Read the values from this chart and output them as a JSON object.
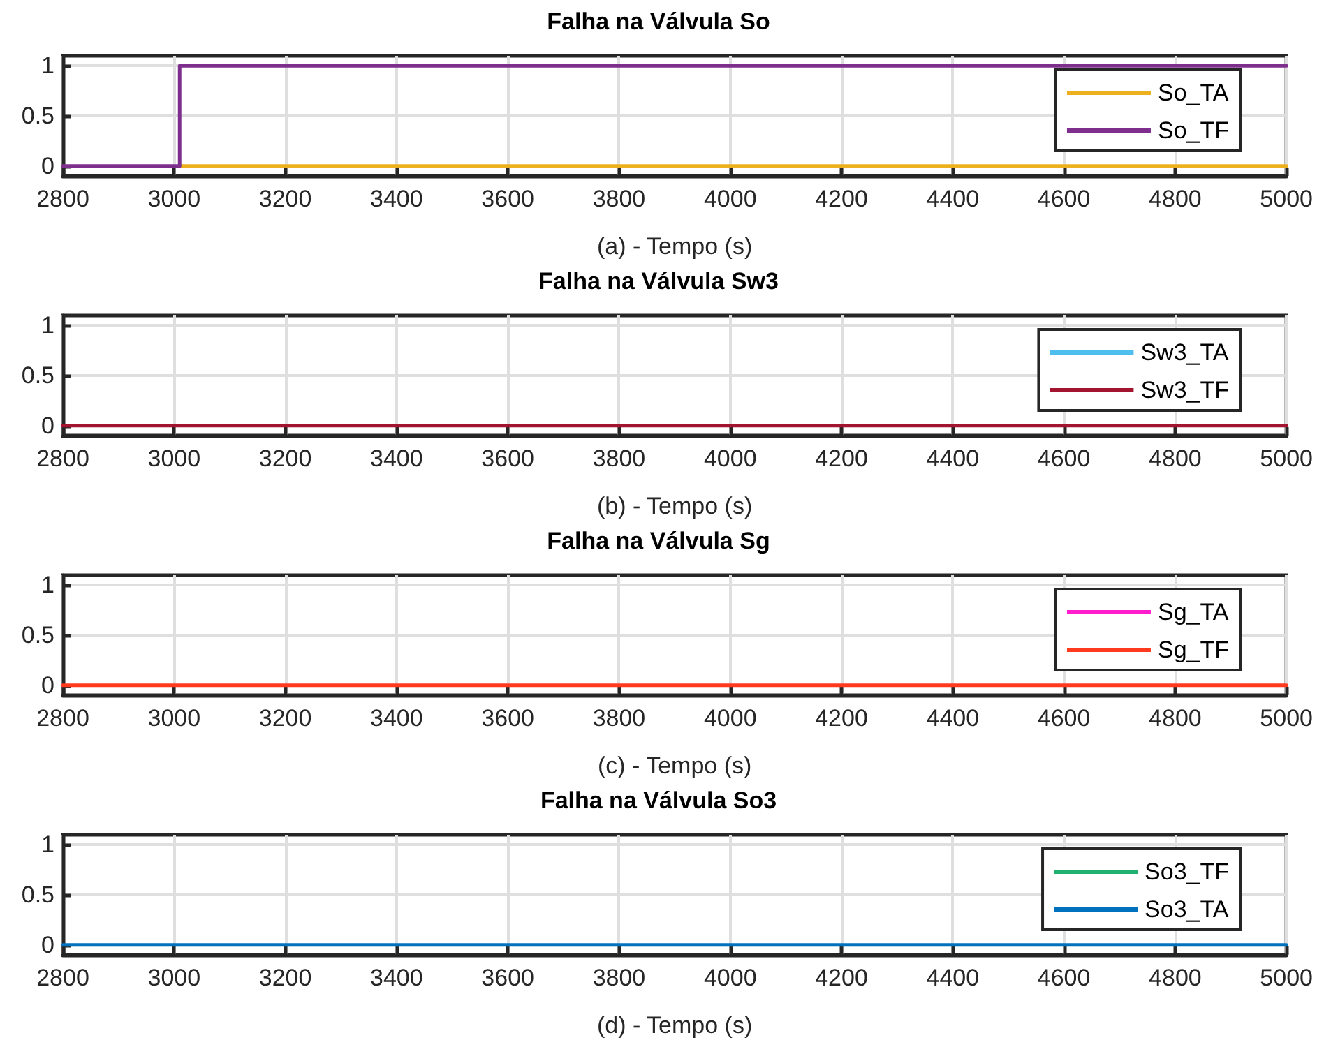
{
  "chart_data": [
    {
      "type": "line",
      "title": "Falha na Válvula So",
      "xlabel": "(a) - Tempo (s)",
      "xlim": [
        2800,
        5000
      ],
      "xticks": [
        2800,
        3000,
        3200,
        3400,
        3600,
        3800,
        4000,
        4200,
        4400,
        4600,
        4800,
        5000
      ],
      "ylim": [
        -0.1,
        1.1
      ],
      "yticks": [
        0,
        0.5,
        1
      ],
      "grid": true,
      "legend": "top right",
      "marker": "none",
      "line_style": "solid",
      "series": [
        {
          "name": "So_TA",
          "color": "#edb120",
          "x": [
            3010,
            5000
          ],
          "values": [
            0,
            0
          ]
        },
        {
          "name": "So_TF",
          "color": "#7e2f8e",
          "x": [
            2800,
            3010,
            3010,
            5000
          ],
          "values": [
            0,
            0,
            1,
            1
          ]
        }
      ]
    },
    {
      "type": "line",
      "title": "Falha na Válvula Sw3",
      "xlabel": "(b) - Tempo (s)",
      "xlim": [
        2800,
        5000
      ],
      "xticks": [
        2800,
        3000,
        3200,
        3400,
        3600,
        3800,
        4000,
        4200,
        4400,
        4600,
        4800,
        5000
      ],
      "ylim": [
        -0.1,
        1.1
      ],
      "yticks": [
        0,
        0.5,
        1
      ],
      "grid": true,
      "legend": "top right",
      "marker": "none",
      "line_style": "solid",
      "series": [
        {
          "name": "Sw3_TA",
          "color": "#4dbeee"
        },
        {
          "name": "Sw3_TF",
          "color": "#a2142f",
          "x": [
            2800,
            5000
          ],
          "values": [
            0,
            0
          ]
        }
      ]
    },
    {
      "type": "line",
      "title": "Falha na Válvula Sg",
      "xlabel": "(c) - Tempo (s)",
      "xlim": [
        2800,
        5000
      ],
      "xticks": [
        2800,
        3000,
        3200,
        3400,
        3600,
        3800,
        4000,
        4200,
        4400,
        4600,
        4800,
        5000
      ],
      "ylim": [
        -0.1,
        1.1
      ],
      "yticks": [
        0,
        0.5,
        1
      ],
      "grid": true,
      "legend": "top right",
      "marker": "none",
      "line_style": "solid",
      "series": [
        {
          "name": "Sg_TA",
          "color": "#ff1dce"
        },
        {
          "name": "Sg_TF",
          "color": "#ff3a1e",
          "x": [
            2800,
            5000
          ],
          "values": [
            0,
            0
          ]
        }
      ]
    },
    {
      "type": "line",
      "title": "Falha na Válvula So3",
      "xlabel": "(d) - Tempo (s)",
      "xlim": [
        2800,
        5000
      ],
      "xticks": [
        2800,
        3000,
        3200,
        3400,
        3600,
        3800,
        4000,
        4200,
        4400,
        4600,
        4800,
        5000
      ],
      "ylim": [
        -0.1,
        1.1
      ],
      "yticks": [
        0,
        0.5,
        1
      ],
      "grid": true,
      "legend": "top right",
      "marker": "none",
      "line_style": "solid",
      "series": [
        {
          "name": "So3_TF",
          "color": "#20b070"
        },
        {
          "name": "So3_TA",
          "color": "#0072bd",
          "x": [
            2800,
            5000
          ],
          "values": [
            0,
            0
          ]
        }
      ]
    }
  ]
}
